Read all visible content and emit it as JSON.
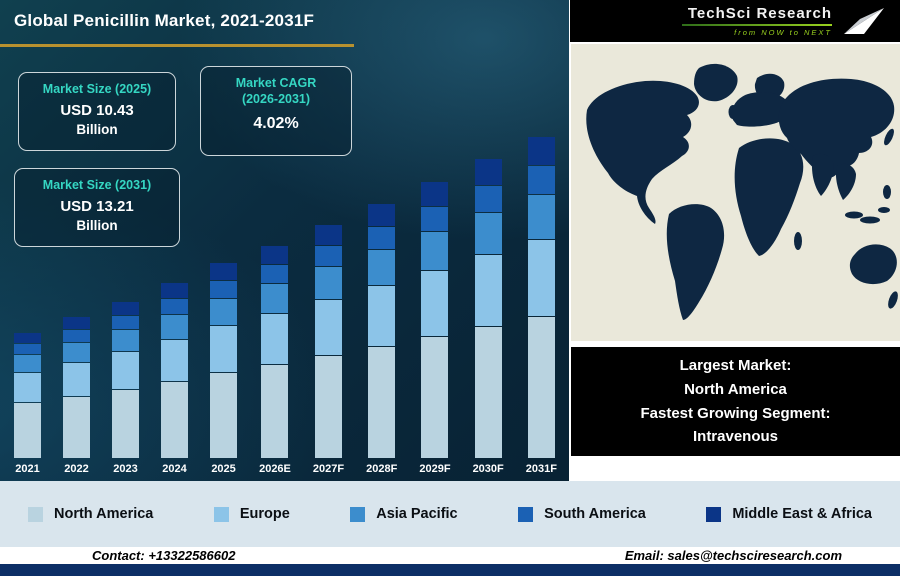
{
  "header": {
    "title": "Global Penicillin Market, 2021-2031F"
  },
  "logo": {
    "brand": "TechSci Research",
    "tagline": "from NOW to NEXT"
  },
  "info_boxes": {
    "size_2025": {
      "label": "Market Size (2025)",
      "value": "USD 10.43",
      "unit": "Billion"
    },
    "cagr": {
      "label_line1": "Market CAGR",
      "label_line2": "(2026-2031)",
      "value": "4.02%"
    },
    "size_2031": {
      "label": "Market Size (2031)",
      "value": "USD 13.21",
      "unit": "Billion"
    }
  },
  "chart_data": {
    "type": "bar",
    "stacked": true,
    "title": "Global Penicillin Market, 2021-2031F",
    "unit": "USD Billion",
    "categories": [
      "2021",
      "2022",
      "2023",
      "2024",
      "2025",
      "2026E",
      "2027F",
      "2028F",
      "2029F",
      "2030F",
      "2031F"
    ],
    "series": [
      {
        "name": "North America",
        "color": "#b9d3e0",
        "values": [
          3.94,
          4.08,
          4.23,
          4.4,
          4.59,
          4.77,
          4.97,
          5.17,
          5.38,
          5.59,
          5.81
        ]
      },
      {
        "name": "Europe",
        "color": "#8cc4e8",
        "values": [
          2.15,
          2.23,
          2.31,
          2.4,
          2.5,
          2.6,
          2.71,
          2.82,
          2.93,
          3.05,
          3.17
        ]
      },
      {
        "name": "Asia Pacific",
        "color": "#3c8dcd",
        "values": [
          1.25,
          1.3,
          1.35,
          1.4,
          1.46,
          1.52,
          1.58,
          1.65,
          1.71,
          1.78,
          1.85
        ]
      },
      {
        "name": "South America",
        "color": "#1b61b4",
        "values": [
          0.81,
          0.84,
          0.87,
          0.9,
          0.94,
          0.98,
          1.02,
          1.06,
          1.1,
          1.14,
          1.19
        ]
      },
      {
        "name": "Middle East & Africa",
        "color": "#0b3587",
        "values": [
          0.8,
          0.83,
          0.86,
          0.91,
          0.94,
          0.98,
          1.01,
          1.05,
          1.1,
          1.15,
          1.19
        ]
      }
    ],
    "totals": [
      8.95,
      9.28,
      9.62,
      10.01,
      10.43,
      10.85,
      11.29,
      11.75,
      12.22,
      12.71,
      13.21
    ],
    "annotations": {
      "market_size_2025": "USD 10.43 Billion",
      "market_size_2031": "USD 13.21 Billion",
      "cagr_2026_2031": "4.02%"
    },
    "legend_position": "bottom",
    "grid": false
  },
  "caption": {
    "lines": [
      "Largest Market:",
      "North America",
      "Fastest Growing Segment:",
      "Intravenous"
    ]
  },
  "legend": [
    {
      "label": "North America",
      "color": "#b9d3e0"
    },
    {
      "label": "Europe",
      "color": "#8cc4e8"
    },
    {
      "label": "Asia Pacific",
      "color": "#3c8dcd"
    },
    {
      "label": "South America",
      "color": "#1b61b4"
    },
    {
      "label": "Middle East & Africa",
      "color": "#0b3587"
    }
  ],
  "footer": {
    "contact": "Contact: +13322586602",
    "email": "Email: sales@techsciresearch.com"
  }
}
